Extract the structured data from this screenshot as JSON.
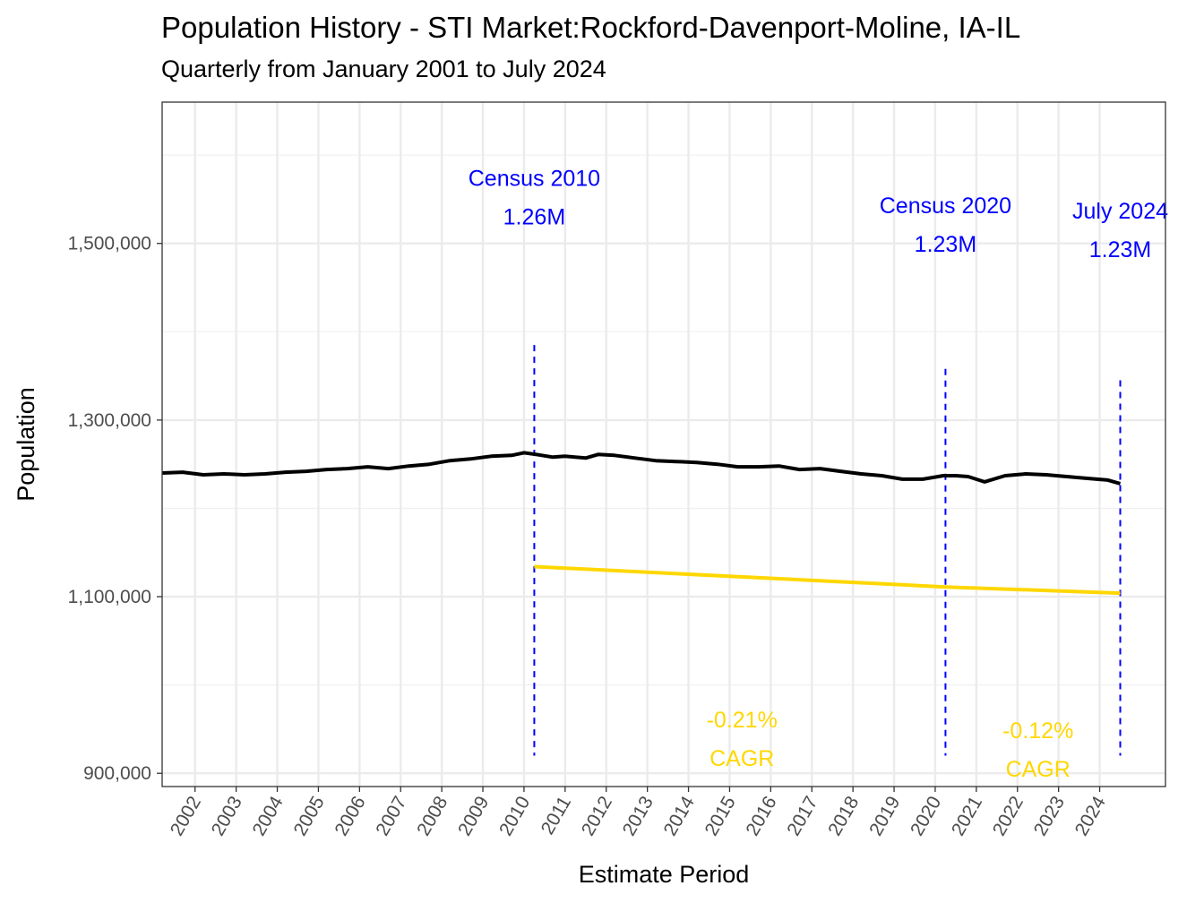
{
  "chart_data": {
    "type": "line",
    "title": "Population History - STI Market:Rockford-Davenport-Moline, IA-IL",
    "subtitle": "Quarterly from January 2001 to July 2024",
    "xlabel": "Estimate Period",
    "ylabel": "Population",
    "xlim": [
      2001.2,
      2025.6
    ],
    "ylim": [
      885000,
      1660000
    ],
    "y_ticks": [
      900000,
      1100000,
      1300000,
      1500000
    ],
    "y_tick_labels": [
      "900,000",
      "1,100,000",
      "1,300,000",
      "1,500,000"
    ],
    "x_ticks": [
      2002,
      2003,
      2004,
      2005,
      2006,
      2007,
      2008,
      2009,
      2010,
      2011,
      2012,
      2013,
      2014,
      2015,
      2016,
      2017,
      2018,
      2019,
      2020,
      2021,
      2022,
      2023,
      2024
    ],
    "x_tick_labels": [
      "2002",
      "2003",
      "2004",
      "2005",
      "2006",
      "2007",
      "2008",
      "2009",
      "2010",
      "2011",
      "2012",
      "2013",
      "2014",
      "2015",
      "2016",
      "2017",
      "2018",
      "2019",
      "2020",
      "2021",
      "2022",
      "2023",
      "2024"
    ],
    "grid": true,
    "colors": {
      "population": "#000000",
      "cagr": "#FFD700",
      "census": "#0000FF"
    },
    "series": [
      {
        "key": "population",
        "x": [
          2001.2,
          2001.7,
          2002.2,
          2002.7,
          2003.2,
          2003.7,
          2004.2,
          2004.7,
          2005.2,
          2005.7,
          2006.2,
          2006.7,
          2007.2,
          2007.7,
          2008.2,
          2008.7,
          2009.2,
          2009.7,
          2010.0,
          2010.3,
          2010.7,
          2011.0,
          2011.5,
          2011.8,
          2012.2,
          2012.7,
          2013.2,
          2013.7,
          2014.2,
          2014.7,
          2015.2,
          2015.7,
          2016.2,
          2016.7,
          2017.2,
          2017.7,
          2018.2,
          2018.7,
          2019.2,
          2019.7,
          2020.2,
          2020.5,
          2020.8,
          2021.2,
          2021.7,
          2022.2,
          2022.7,
          2023.2,
          2023.7,
          2024.2,
          2024.5
        ],
        "values": [
          1240000,
          1241000,
          1238000,
          1239000,
          1238000,
          1239000,
          1241000,
          1242000,
          1244000,
          1245000,
          1247000,
          1245000,
          1248000,
          1250000,
          1254000,
          1256000,
          1259000,
          1260000,
          1263000,
          1261000,
          1258000,
          1259000,
          1257000,
          1261000,
          1260000,
          1257000,
          1254000,
          1253000,
          1252000,
          1250000,
          1247000,
          1247000,
          1248000,
          1244000,
          1245000,
          1242000,
          1239000,
          1237000,
          1233000,
          1233000,
          1237000,
          1237000,
          1236000,
          1230000,
          1237000,
          1239000,
          1238000,
          1236000,
          1234000,
          1232000,
          1228000
        ]
      },
      {
        "key": "cagr",
        "x": [
          2010.25,
          2020.25,
          2024.5
        ],
        "values": [
          1134000,
          1111000,
          1104000
        ]
      }
    ],
    "vlines": [
      {
        "x": 2010.25,
        "y_top": 1385000,
        "y_bottom": 920000
      },
      {
        "x": 2020.25,
        "y_top": 1358000,
        "y_bottom": 920000
      },
      {
        "x": 2024.5,
        "y_top": 1345000,
        "y_bottom": 920000
      }
    ],
    "annotations": [
      {
        "kind": "census",
        "x": 2010.25,
        "y": 1565000,
        "lines": [
          "Census 2010",
          "1.26M"
        ]
      },
      {
        "kind": "census",
        "x": 2020.25,
        "y": 1534000,
        "lines": [
          "Census 2020",
          "1.23M"
        ]
      },
      {
        "kind": "census",
        "x": 2024.5,
        "y": 1528000,
        "lines": [
          "July 2024",
          "1.23M"
        ]
      },
      {
        "kind": "cagr",
        "x": 2015.3,
        "y": 952000,
        "lines": [
          "-0.21%",
          "CAGR"
        ]
      },
      {
        "kind": "cagr",
        "x": 2022.5,
        "y": 940000,
        "lines": [
          "-0.12%",
          "CAGR"
        ]
      }
    ]
  }
}
